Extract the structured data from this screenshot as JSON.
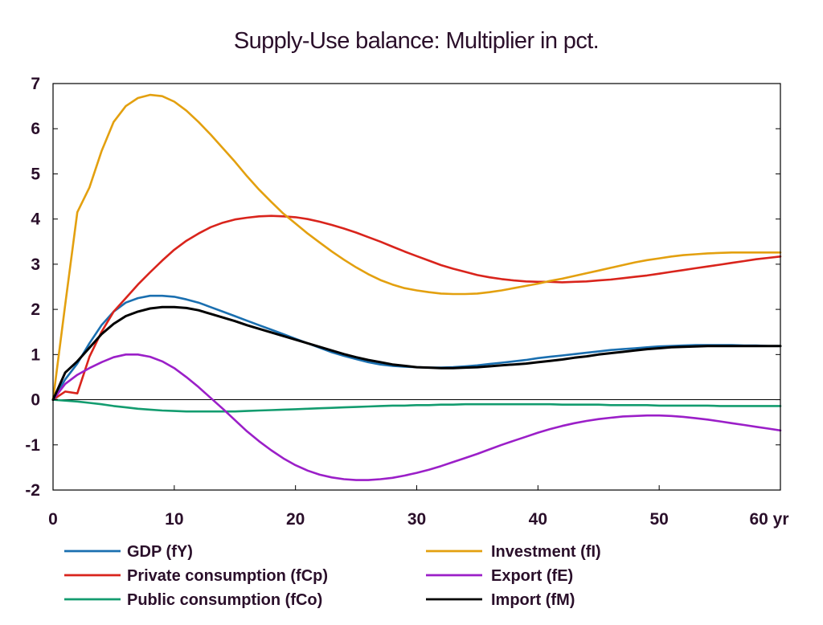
{
  "chart_data": {
    "type": "line",
    "title": "Supply-Use balance: Multiplier in pct.",
    "xlabel": "",
    "ylabel": "",
    "x_unit": "yr",
    "xlim": [
      0,
      60
    ],
    "ylim": [
      -2,
      7
    ],
    "x_ticks": [
      "0",
      "10",
      "20",
      "30",
      "40",
      "50",
      "60 yr"
    ],
    "y_ticks": [
      "-2",
      "-1",
      "0",
      "1",
      "2",
      "3",
      "4",
      "5",
      "6",
      "7"
    ],
    "grid": false,
    "legend_position": "bottom",
    "x": [
      0,
      1,
      2,
      3,
      4,
      5,
      6,
      7,
      8,
      9,
      10,
      11,
      12,
      13,
      14,
      15,
      16,
      17,
      18,
      19,
      20,
      21,
      22,
      23,
      24,
      25,
      26,
      27,
      28,
      29,
      30,
      31,
      32,
      33,
      34,
      35,
      36,
      37,
      38,
      39,
      40,
      41,
      42,
      43,
      44,
      45,
      46,
      47,
      48,
      49,
      50,
      51,
      52,
      53,
      54,
      55,
      56,
      57,
      58,
      59,
      60
    ],
    "series": [
      {
        "name": "GDP (fY)",
        "color": "#1a6fb0",
        "values": [
          0,
          0.45,
          0.8,
          1.25,
          1.65,
          1.95,
          2.15,
          2.25,
          2.3,
          2.3,
          2.28,
          2.22,
          2.15,
          2.05,
          1.95,
          1.85,
          1.75,
          1.65,
          1.55,
          1.45,
          1.35,
          1.25,
          1.15,
          1.05,
          0.97,
          0.9,
          0.83,
          0.78,
          0.75,
          0.73,
          0.72,
          0.71,
          0.71,
          0.72,
          0.74,
          0.76,
          0.79,
          0.82,
          0.85,
          0.88,
          0.92,
          0.95,
          0.98,
          1.01,
          1.04,
          1.07,
          1.1,
          1.12,
          1.14,
          1.16,
          1.18,
          1.19,
          1.2,
          1.21,
          1.21,
          1.21,
          1.21,
          1.2,
          1.2,
          1.19,
          1.19
        ]
      },
      {
        "name": "Private consumption (fCp)",
        "color": "#d9241c",
        "values": [
          0,
          0.18,
          0.14,
          0.95,
          1.5,
          1.95,
          2.25,
          2.55,
          2.82,
          3.08,
          3.32,
          3.52,
          3.68,
          3.82,
          3.92,
          3.99,
          4.03,
          4.06,
          4.07,
          4.06,
          4.04,
          4.0,
          3.94,
          3.87,
          3.79,
          3.7,
          3.6,
          3.5,
          3.39,
          3.28,
          3.18,
          3.08,
          2.98,
          2.9,
          2.83,
          2.76,
          2.71,
          2.67,
          2.64,
          2.62,
          2.61,
          2.61,
          2.6,
          2.61,
          2.62,
          2.64,
          2.66,
          2.69,
          2.72,
          2.75,
          2.79,
          2.83,
          2.87,
          2.91,
          2.95,
          2.99,
          3.03,
          3.07,
          3.11,
          3.14,
          3.17
        ]
      },
      {
        "name": "Public consumption (fCo)",
        "color": "#139c6f",
        "values": [
          0,
          -0.02,
          -0.04,
          -0.07,
          -0.1,
          -0.14,
          -0.17,
          -0.2,
          -0.22,
          -0.24,
          -0.25,
          -0.26,
          -0.26,
          -0.26,
          -0.26,
          -0.26,
          -0.25,
          -0.24,
          -0.23,
          -0.22,
          -0.21,
          -0.2,
          -0.19,
          -0.18,
          -0.17,
          -0.16,
          -0.15,
          -0.14,
          -0.13,
          -0.13,
          -0.12,
          -0.12,
          -0.11,
          -0.11,
          -0.1,
          -0.1,
          -0.1,
          -0.1,
          -0.1,
          -0.1,
          -0.1,
          -0.1,
          -0.11,
          -0.11,
          -0.11,
          -0.11,
          -0.12,
          -0.12,
          -0.12,
          -0.12,
          -0.13,
          -0.13,
          -0.13,
          -0.13,
          -0.13,
          -0.14,
          -0.14,
          -0.14,
          -0.14,
          -0.14,
          -0.14
        ]
      },
      {
        "name": "Investment (fI)",
        "color": "#e3a00f",
        "values": [
          0,
          2.1,
          4.15,
          4.7,
          5.5,
          6.15,
          6.5,
          6.68,
          6.75,
          6.72,
          6.6,
          6.4,
          6.15,
          5.87,
          5.57,
          5.27,
          4.95,
          4.65,
          4.38,
          4.12,
          3.9,
          3.68,
          3.48,
          3.28,
          3.1,
          2.93,
          2.78,
          2.65,
          2.55,
          2.47,
          2.42,
          2.38,
          2.35,
          2.34,
          2.34,
          2.35,
          2.38,
          2.42,
          2.47,
          2.52,
          2.57,
          2.63,
          2.68,
          2.74,
          2.8,
          2.86,
          2.92,
          2.98,
          3.04,
          3.09,
          3.13,
          3.17,
          3.2,
          3.22,
          3.24,
          3.25,
          3.26,
          3.26,
          3.26,
          3.26,
          3.26
        ]
      },
      {
        "name": "Export (fE)",
        "color": "#9b1fc8",
        "values": [
          0,
          0.35,
          0.55,
          0.7,
          0.83,
          0.94,
          1.0,
          1.0,
          0.95,
          0.85,
          0.7,
          0.5,
          0.28,
          0.04,
          -0.2,
          -0.45,
          -0.7,
          -0.92,
          -1.12,
          -1.3,
          -1.45,
          -1.57,
          -1.66,
          -1.72,
          -1.76,
          -1.78,
          -1.78,
          -1.76,
          -1.73,
          -1.68,
          -1.62,
          -1.55,
          -1.47,
          -1.38,
          -1.29,
          -1.2,
          -1.1,
          -1.0,
          -0.91,
          -0.82,
          -0.73,
          -0.65,
          -0.58,
          -0.52,
          -0.47,
          -0.43,
          -0.4,
          -0.37,
          -0.36,
          -0.35,
          -0.35,
          -0.36,
          -0.38,
          -0.41,
          -0.44,
          -0.48,
          -0.52,
          -0.56,
          -0.6,
          -0.64,
          -0.68
        ]
      },
      {
        "name": "Import (fM)",
        "color": "#000000",
        "values": [
          0,
          0.6,
          0.85,
          1.15,
          1.45,
          1.68,
          1.85,
          1.95,
          2.02,
          2.05,
          2.05,
          2.03,
          1.98,
          1.9,
          1.82,
          1.74,
          1.65,
          1.57,
          1.49,
          1.41,
          1.33,
          1.25,
          1.17,
          1.09,
          1.01,
          0.94,
          0.88,
          0.83,
          0.78,
          0.75,
          0.72,
          0.71,
          0.7,
          0.7,
          0.71,
          0.72,
          0.74,
          0.76,
          0.78,
          0.8,
          0.83,
          0.86,
          0.89,
          0.93,
          0.96,
          1.0,
          1.03,
          1.06,
          1.09,
          1.12,
          1.14,
          1.16,
          1.17,
          1.18,
          1.19,
          1.19,
          1.19,
          1.19,
          1.19,
          1.19,
          1.19
        ]
      }
    ]
  }
}
